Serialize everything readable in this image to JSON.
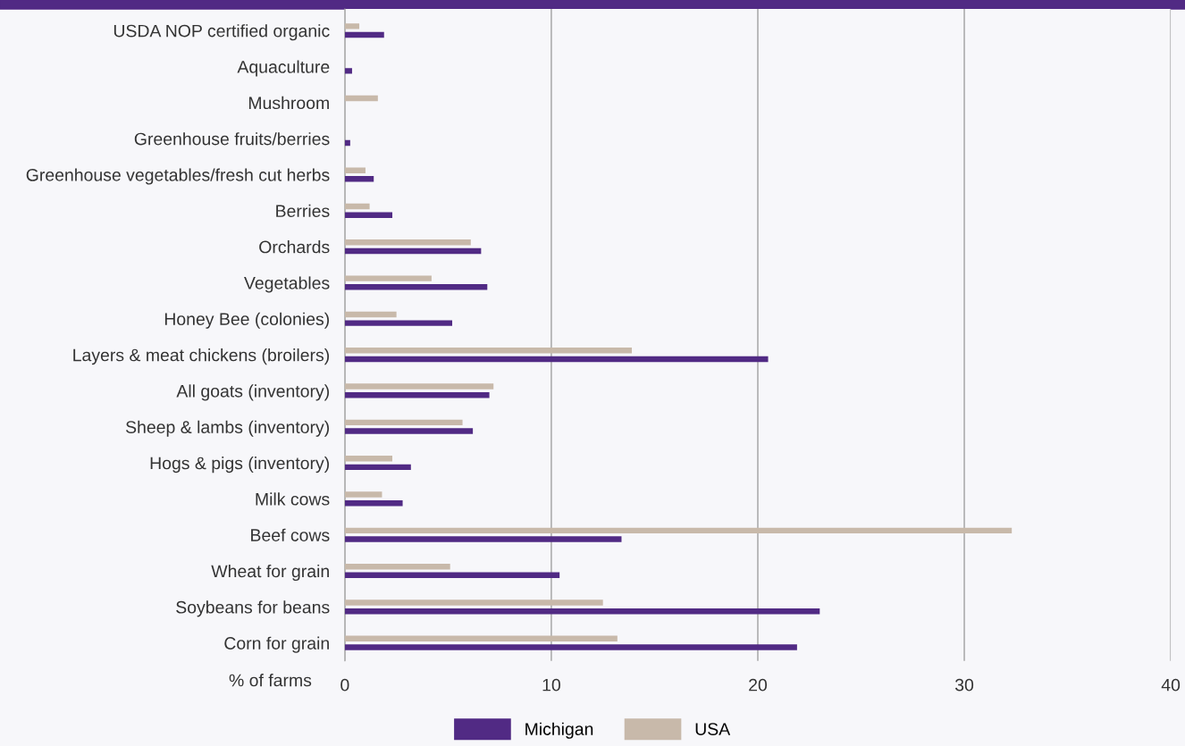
{
  "chart_data": {
    "type": "bar",
    "orientation": "horizontal",
    "xlabel": "% of farms",
    "categories": [
      "USDA NOP certified organic",
      "Aquaculture",
      "Mushroom",
      "Greenhouse fruits/berries",
      "Greenhouse vegetables/fresh cut herbs",
      "Berries",
      "Orchards",
      "Vegetables",
      "Honey Bee (colonies)",
      "Layers & meat chickens (broilers)",
      "All goats (inventory)",
      "Sheep & lambs (inventory)",
      "Hogs & pigs (inventory)",
      "Milk cows",
      "Beef cows",
      "Wheat for grain",
      "Soybeans for beans",
      "Corn for grain"
    ],
    "series": [
      {
        "name": "USA",
        "color": "#c8b9aa",
        "values": [
          0.7,
          null,
          1.6,
          null,
          1.0,
          1.2,
          6.1,
          4.2,
          2.5,
          13.9,
          7.2,
          5.7,
          2.3,
          1.8,
          32.3,
          5.1,
          12.5,
          13.2
        ]
      },
      {
        "name": "Michigan",
        "color": "#512a84",
        "values": [
          1.9,
          0.35,
          null,
          0.26,
          1.4,
          2.3,
          6.6,
          6.9,
          5.2,
          20.5,
          7.0,
          6.2,
          3.2,
          2.8,
          13.4,
          10.4,
          23.0,
          21.9
        ]
      }
    ],
    "xlim": [
      0,
      40
    ],
    "xticks": [
      0,
      10,
      20,
      30,
      40
    ],
    "grid": "x",
    "legend": "bottom"
  }
}
